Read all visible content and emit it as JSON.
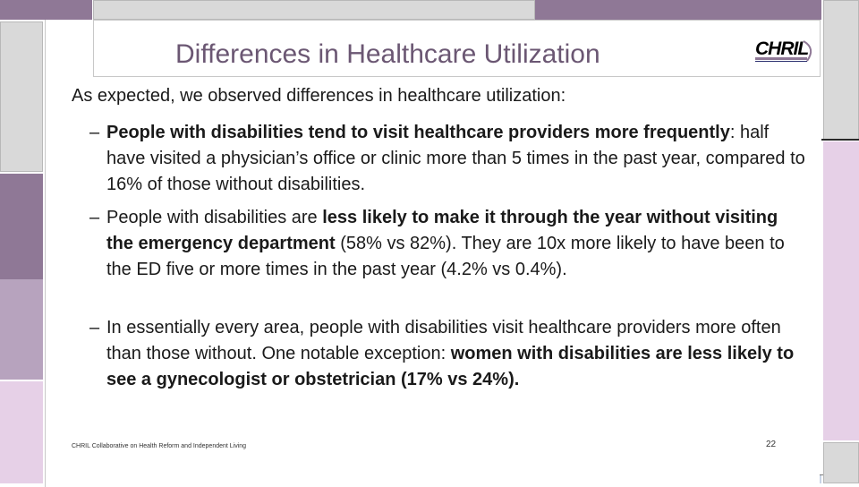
{
  "slide": {
    "title": "Differences in Healthcare Utilization",
    "logo_text": "CHRIL",
    "lead": "As expected, we observed differences in healthcare utilization:",
    "bullets": [
      {
        "dash": "–",
        "parts": [
          {
            "text": "People with disabilities tend to visit healthcare providers more frequently",
            "bold": true
          },
          {
            "text": ": half have visited a physician’s office or clinic more than 5 times in the past year, compared to 16% of those without disabilities.",
            "bold": false
          }
        ]
      },
      {
        "dash": "–",
        "parts": [
          {
            "text": "People with disabilities are ",
            "bold": false
          },
          {
            "text": "less likely to make it through the year without visiting the emergency department",
            "bold": true
          },
          {
            "text": " (58% vs 82%). They are 10x more likely to have been to the ED five or more times in the past year (4.2% vs 0.4%).",
            "bold": false
          }
        ]
      },
      {
        "dash": "–",
        "parts": [
          {
            "text": "In essentially every area, people with disabilities visit healthcare providers more often than those without. One notable exception: ",
            "bold": false
          },
          {
            "text": "women with disabilities are less likely to see a gynecologist or obstetrician (17% vs 24%).",
            "bold": true
          }
        ]
      }
    ],
    "footer": "CHRIL Collaborative on Health Reform and Independent Living",
    "page_number": "22"
  },
  "colors": {
    "title": "#6b5773",
    "purple_dark": "#8f7896",
    "purple_light": "#e6d0e7",
    "logo": "#2b2f6e"
  }
}
